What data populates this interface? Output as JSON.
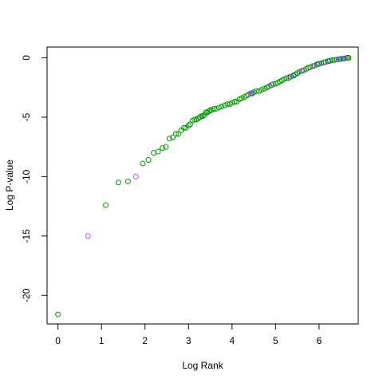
{
  "chart_data": {
    "type": "scatter",
    "xlabel": "Log Rank",
    "ylabel": "Log P-value",
    "xlim": [
      -0.25,
      6.9
    ],
    "ylim": [
      -22.4,
      0.9
    ],
    "x_ticks": [
      "0",
      "1",
      "2",
      "3",
      "4",
      "5",
      "6"
    ],
    "y_ticks": [
      "0",
      "-5",
      "-10",
      "-15",
      "-20"
    ],
    "series": [
      {
        "color": "#009900",
        "points": [
          [
            0,
            -21.6
          ],
          [
            1.1,
            -12.4
          ],
          [
            1.39,
            -10.5
          ],
          [
            1.61,
            -10.4
          ],
          [
            1.95,
            -8.9
          ],
          [
            2.08,
            -8.6
          ],
          [
            2.2,
            -8.0
          ],
          [
            2.3,
            -7.9
          ],
          [
            2.4,
            -7.6
          ],
          [
            2.48,
            -7.5
          ],
          [
            2.56,
            -6.8
          ],
          [
            2.64,
            -6.7
          ],
          [
            2.71,
            -6.4
          ],
          [
            2.77,
            -6.4
          ],
          [
            2.83,
            -6.1
          ],
          [
            2.89,
            -5.9
          ],
          [
            2.94,
            -5.9
          ],
          [
            3.0,
            -5.7
          ],
          [
            3.04,
            -5.6
          ],
          [
            3.09,
            -5.3
          ],
          [
            3.14,
            -5.2
          ],
          [
            3.18,
            -5.2
          ],
          [
            3.22,
            -5.1
          ],
          [
            3.26,
            -5.0
          ],
          [
            3.3,
            -4.9
          ],
          [
            3.33,
            -4.9
          ],
          [
            3.37,
            -4.8
          ],
          [
            3.4,
            -4.6
          ],
          [
            3.43,
            -4.6
          ],
          [
            3.47,
            -4.5
          ],
          [
            3.5,
            -4.4
          ],
          [
            3.53,
            -4.4
          ],
          [
            3.58,
            -4.3
          ],
          [
            3.64,
            -4.3
          ],
          [
            3.7,
            -4.2
          ],
          [
            3.76,
            -4.1
          ],
          [
            3.83,
            -4.0
          ],
          [
            3.89,
            -3.9
          ],
          [
            3.95,
            -3.9
          ],
          [
            4.0,
            -3.8
          ],
          [
            4.06,
            -3.7
          ],
          [
            4.11,
            -3.7
          ],
          [
            4.17,
            -3.5
          ],
          [
            4.22,
            -3.4
          ],
          [
            4.28,
            -3.3
          ],
          [
            4.33,
            -3.2
          ],
          [
            4.38,
            -3.1
          ],
          [
            4.44,
            -3.0
          ],
          [
            4.5,
            -2.9
          ],
          [
            4.56,
            -2.8
          ],
          [
            4.62,
            -2.8
          ],
          [
            4.68,
            -2.7
          ],
          [
            4.74,
            -2.6
          ],
          [
            4.8,
            -2.5
          ],
          [
            4.85,
            -2.4
          ],
          [
            4.9,
            -2.3
          ],
          [
            4.95,
            -2.2
          ],
          [
            5.0,
            -2.2
          ],
          [
            5.05,
            -2.1
          ],
          [
            5.1,
            -2.0
          ],
          [
            5.15,
            -1.9
          ],
          [
            5.2,
            -1.8
          ],
          [
            5.25,
            -1.7
          ],
          [
            5.3,
            -1.7
          ],
          [
            5.35,
            -1.6
          ],
          [
            5.4,
            -1.5
          ],
          [
            5.45,
            -1.4
          ],
          [
            5.5,
            -1.3
          ],
          [
            5.55,
            -1.2
          ],
          [
            5.6,
            -1.1
          ],
          [
            5.65,
            -1.05
          ],
          [
            5.7,
            -0.95
          ],
          [
            5.75,
            -0.85
          ],
          [
            5.8,
            -0.8
          ],
          [
            5.85,
            -0.7
          ],
          [
            5.9,
            -0.65
          ],
          [
            5.95,
            -0.55
          ],
          [
            6.0,
            -0.5
          ],
          [
            6.05,
            -0.45
          ],
          [
            6.1,
            -0.4
          ],
          [
            6.15,
            -0.35
          ],
          [
            6.2,
            -0.3
          ],
          [
            6.25,
            -0.25
          ],
          [
            6.3,
            -0.2
          ],
          [
            6.35,
            -0.18
          ],
          [
            6.4,
            -0.15
          ],
          [
            6.45,
            -0.12
          ],
          [
            6.5,
            -0.1
          ],
          [
            6.55,
            -0.07
          ],
          [
            6.6,
            -0.04
          ],
          [
            6.63,
            -0.02
          ],
          [
            6.66,
            -0.01
          ],
          [
            6.68,
            0.0
          ]
        ]
      },
      {
        "color": "#cc44ff",
        "points": [
          [
            0.69,
            -15.0
          ],
          [
            1.79,
            -10.0
          ],
          [
            4.42,
            -3.0
          ],
          [
            4.92,
            -2.3
          ],
          [
            5.32,
            -1.6
          ],
          [
            5.62,
            -1.1
          ],
          [
            5.88,
            -0.7
          ],
          [
            6.12,
            -0.4
          ],
          [
            6.42,
            -0.14
          ],
          [
            6.6,
            -0.05
          ]
        ]
      },
      {
        "color": "#4455cc",
        "points": [
          [
            4.47,
            -3.0
          ],
          [
            5.42,
            -1.5
          ],
          [
            5.97,
            -0.55
          ],
          [
            6.22,
            -0.3
          ],
          [
            6.48,
            -0.1
          ],
          [
            6.57,
            -0.06
          ]
        ]
      }
    ]
  }
}
